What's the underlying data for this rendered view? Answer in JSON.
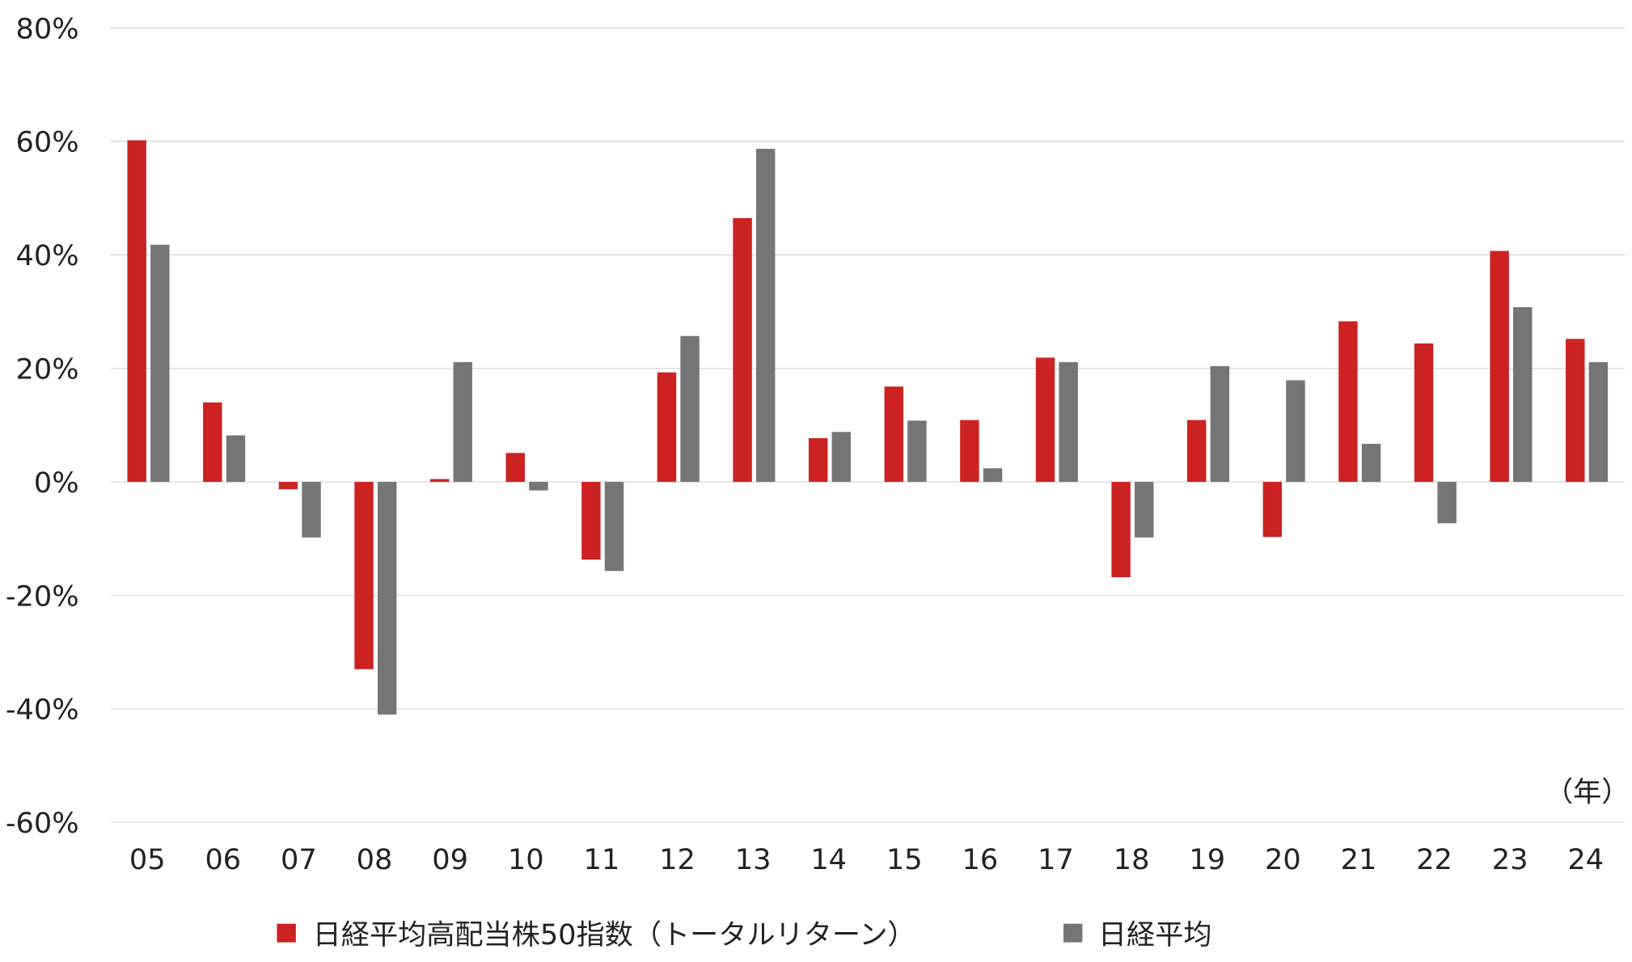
{
  "chart_data": {
    "type": "bar",
    "title": "",
    "xlabel": "（年）",
    "ylabel": "",
    "ylim": [
      -60,
      80
    ],
    "yticks": [
      "80%",
      "60%",
      "40%",
      "20%",
      "0%",
      "-20%",
      "-40%",
      "-60%"
    ],
    "ytick_values": [
      80,
      60,
      40,
      20,
      0,
      -20,
      -40,
      -60
    ],
    "grid": true,
    "legend_placement": "bottom",
    "categories": [
      "05",
      "06",
      "07",
      "08",
      "09",
      "10",
      "11",
      "12",
      "13",
      "14",
      "15",
      "16",
      "17",
      "18",
      "19",
      "20",
      "21",
      "22",
      "23",
      "24"
    ],
    "series": [
      {
        "name": "日経平均高配当株50指数（トータルリターン）",
        "color": "#cc2222",
        "values": [
          60.2,
          14.0,
          -1.3,
          -33.0,
          0.5,
          5.1,
          -13.7,
          19.3,
          46.5,
          7.7,
          16.8,
          10.9,
          21.9,
          -16.8,
          10.9,
          -9.7,
          28.3,
          24.4,
          40.7,
          25.2
        ]
      },
      {
        "name": "日経平均",
        "color": "#757575",
        "values": [
          41.8,
          8.2,
          -9.8,
          -41.0,
          21.1,
          -1.5,
          -15.7,
          25.7,
          58.7,
          8.8,
          10.8,
          2.4,
          21.1,
          -9.8,
          20.4,
          17.9,
          6.7,
          -7.3,
          30.8,
          21.1
        ]
      }
    ]
  }
}
